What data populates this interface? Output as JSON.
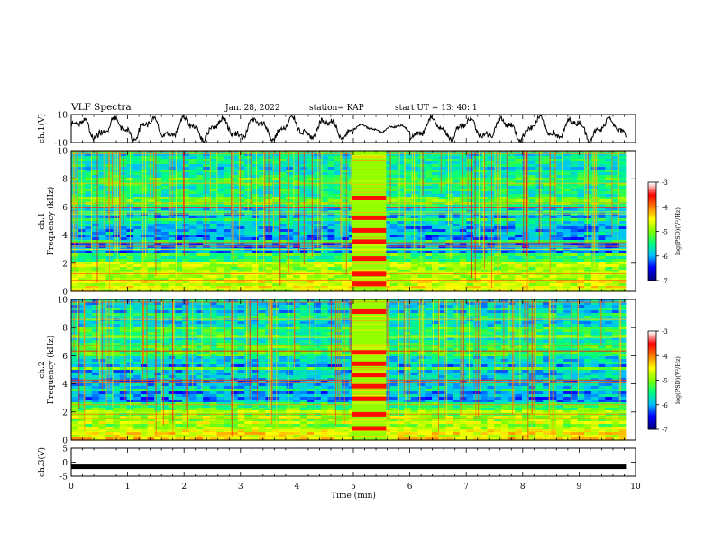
{
  "header": {
    "title": "VLF Spectra",
    "date": "Jan. 28, 2022",
    "station": "station= KAP",
    "start": "start  UT =  13: 40: 1"
  },
  "chart_data": [
    {
      "id": "ch1-waveform",
      "type": "line",
      "ylabel": "ch.1(V)",
      "ylim": [
        -10,
        10
      ],
      "ytick_labels": [
        "10",
        "-10"
      ],
      "xlim": [
        0,
        9.83
      ],
      "series_color": "#000000"
    },
    {
      "id": "ch1-spectrogram",
      "type": "heatmap",
      "ylabel": "ch.1\nFrequency (kHz)",
      "ylim": [
        0,
        10
      ],
      "ytick_labels": [
        "0",
        "2",
        "4",
        "6",
        "8",
        "10"
      ],
      "xlim": [
        0,
        9.83
      ],
      "colorbar": {
        "label": "log(PSD)(V²/Hz)",
        "range": [
          -7,
          -3
        ],
        "tick_labels": [
          "-3",
          "-4",
          "-5",
          "-6",
          "-7"
        ],
        "colors": [
          "#000080",
          "#0000ff",
          "#00bfff",
          "#00ff7f",
          "#7fff00",
          "#ffff00",
          "#ff8000",
          "#ff0000",
          "#ffffff"
        ]
      },
      "event_window_min": [
        4.98,
        5.58
      ],
      "event_bands_khz": [
        0.5,
        1.2,
        2.3,
        3.5,
        4.3,
        5.2,
        6.6
      ]
    },
    {
      "id": "ch2-spectrogram",
      "type": "heatmap",
      "ylabel": "ch.2\nFrequency (kHz)",
      "ylim": [
        0,
        10
      ],
      "ytick_labels": [
        "0",
        "2",
        "4",
        "6",
        "8",
        "10"
      ],
      "xlim": [
        0,
        9.83
      ],
      "colorbar": {
        "label": "log(PSD)(V²/Hz)",
        "range": [
          -7,
          -3
        ],
        "tick_labels": [
          "-3",
          "-4",
          "-5",
          "-6",
          "-7"
        ],
        "colors": [
          "#000080",
          "#0000ff",
          "#00bfff",
          "#00ff7f",
          "#7fff00",
          "#ffff00",
          "#ff8000",
          "#ff0000",
          "#ffffff"
        ]
      },
      "event_window_min": [
        4.98,
        5.58
      ],
      "event_bands_khz": [
        0.8,
        1.8,
        2.9,
        3.8,
        4.6,
        5.4,
        6.2,
        9.1
      ]
    },
    {
      "id": "ch3-waveform",
      "type": "line",
      "ylabel": "ch.3(V)",
      "ylim": [
        -5,
        5
      ],
      "ytick_labels": [
        "5",
        "0",
        "-5"
      ],
      "xlim": [
        0,
        9.83
      ],
      "value": -1.5,
      "series_color": "#000000"
    }
  ],
  "xaxis": {
    "label": "Time (min)",
    "range": [
      0,
      10
    ],
    "tick_labels": [
      "0",
      "1",
      "2",
      "3",
      "4",
      "5",
      "6",
      "7",
      "8",
      "9",
      "10"
    ]
  }
}
